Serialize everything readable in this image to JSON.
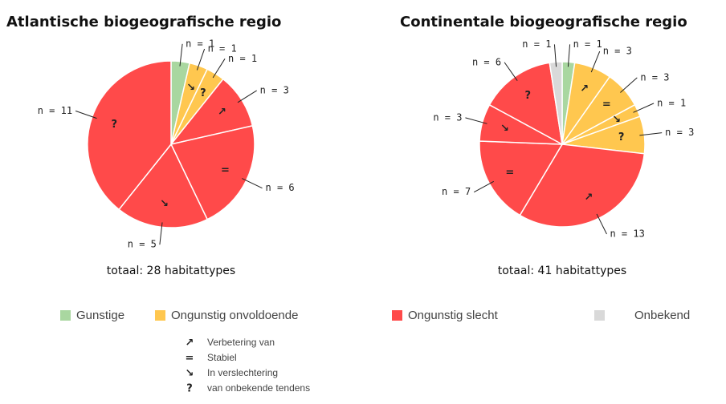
{
  "chart_data": [
    {
      "type": "pie",
      "title": "Atlantische biogeografische regio",
      "values": [
        1,
        1,
        1,
        3,
        6,
        5,
        11
      ],
      "value_labels": [
        "n = 1",
        "n = 1",
        "n = 1",
        "n = 3",
        "n = 6",
        "n = 5",
        "n = 11"
      ],
      "symbols": [
        null,
        "↘",
        "?",
        "↗",
        "=",
        "↘",
        "?"
      ],
      "colors": [
        "#a9d7a0",
        "#ffc74f",
        "#ffc74f",
        "#ff4a4a",
        "#ff4a4a",
        "#ff4a4a",
        "#ff4a4a"
      ],
      "total_label": "totaal: 28 habitattypes"
    },
    {
      "type": "pie",
      "title": "Continentale biogeografische regio",
      "values": [
        1,
        3,
        3,
        1,
        3,
        13,
        7,
        3,
        6,
        1
      ],
      "value_labels": [
        "n = 1",
        "n = 3",
        "n = 3",
        "n = 1",
        "n = 3",
        "n = 13",
        "n = 7",
        "n = 3",
        "n = 6",
        "n = 1"
      ],
      "symbols": [
        null,
        "↗",
        "=",
        "↘",
        "?",
        "↗",
        "=",
        "↘",
        "?",
        null
      ],
      "colors": [
        "#a9d7a0",
        "#ffc74f",
        "#ffc74f",
        "#ffc74f",
        "#ffc74f",
        "#ff4a4a",
        "#ff4a4a",
        "#ff4a4a",
        "#ff4a4a",
        "#d9d9d9"
      ],
      "total_label": "totaal: 41 habitattypes"
    }
  ],
  "legend": {
    "items": [
      {
        "name": "Gunstige",
        "color": "#a9d7a0"
      },
      {
        "name": "Ongunstig onvoldoende",
        "color": "#ffc74f"
      },
      {
        "name": "Ongunstig slecht",
        "color": "#ff4a4a"
      },
      {
        "name": "Onbekend",
        "color": "#d9d9d9"
      }
    ],
    "trends": [
      {
        "symbol": "↗",
        "label": "Verbetering van"
      },
      {
        "symbol": "=",
        "label": "Stabiel"
      },
      {
        "symbol": "↘",
        "label": "In verslechtering"
      },
      {
        "symbol": "?",
        "label": "van onbekende tendens"
      }
    ]
  }
}
